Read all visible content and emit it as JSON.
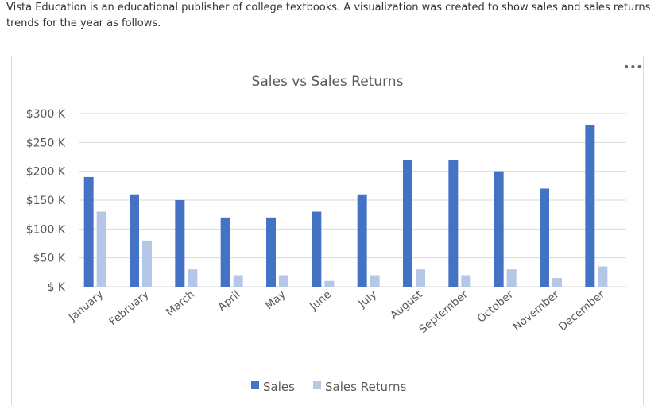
{
  "intro_text": "Vista Education is an educational publisher of college textbooks. A visualization was created to show sales and sales returns trends for the year as follows.",
  "more_icon": "more-horizontal-icon",
  "colors": {
    "sales": "#4472C4",
    "returns": "#B4C7E7",
    "grid": "#D9D9D9",
    "text": "#595959"
  },
  "chart_data": {
    "type": "bar",
    "title": "Sales vs Sales Returns",
    "xlabel": "",
    "ylabel": "",
    "categories": [
      "January",
      "February",
      "March",
      "April",
      "May",
      "June",
      "July",
      "August",
      "September",
      "October",
      "November",
      "December"
    ],
    "series": [
      {
        "name": "Sales",
        "values": [
          190,
          160,
          150,
          120,
          120,
          130,
          160,
          220,
          220,
          200,
          170,
          280
        ]
      },
      {
        "name": "Sales Returns",
        "values": [
          130,
          80,
          30,
          20,
          20,
          10,
          20,
          30,
          20,
          30,
          15,
          35
        ]
      }
    ],
    "ylim": [
      0,
      300
    ],
    "yticks": [
      0,
      50,
      100,
      150,
      200,
      250,
      300
    ],
    "ytick_labels": [
      "$ K",
      "$50 K",
      "$100 K",
      "$150 K",
      "$200 K",
      "$250 K",
      "$300 K"
    ],
    "grid": true,
    "legend_position": "bottom"
  }
}
